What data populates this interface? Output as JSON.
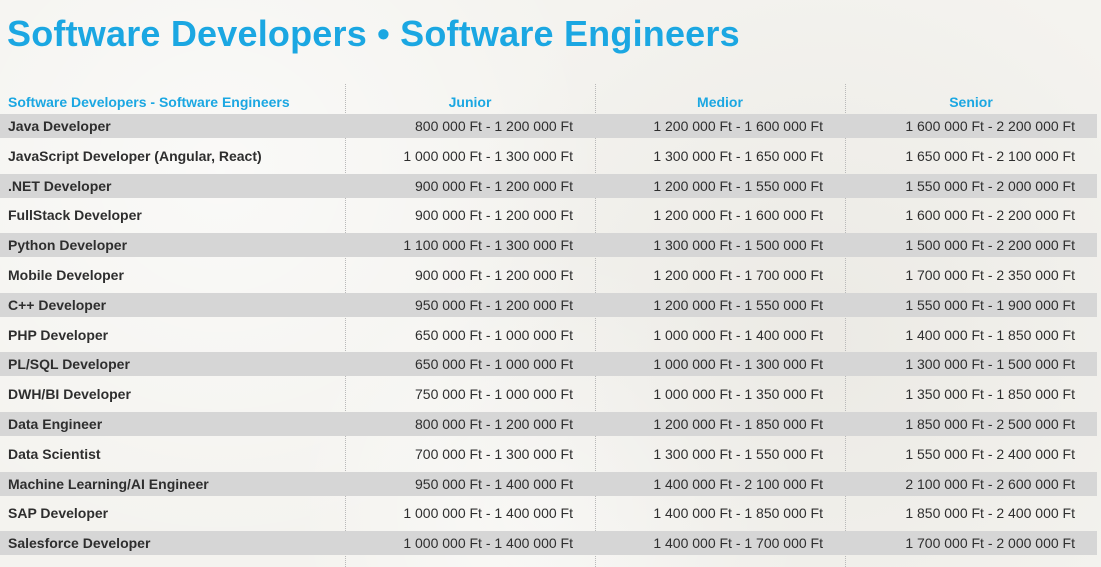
{
  "title": "Software Developers • Software Engineers",
  "table": {
    "headers": [
      "Software Developers - Software Engineers",
      "Junior",
      "Medior",
      "Senior"
    ],
    "rows": [
      {
        "role": "Java Developer",
        "junior": "800 000 Ft  -  1 200 000 Ft",
        "medior": "1 200 000 Ft  -  1 600 000 Ft",
        "senior": "1 600 000 Ft  -  2 200 000 Ft"
      },
      {
        "role": "JavaScript Developer (Angular, React)",
        "junior": "1 000 000 Ft  -  1 300 000 Ft",
        "medior": "1 300 000 Ft  -  1 650 000 Ft",
        "senior": "1 650 000 Ft  -  2 100 000 Ft"
      },
      {
        "role": ".NET Developer",
        "junior": "900 000 Ft  -  1 200 000 Ft",
        "medior": "1 200 000 Ft  -  1 550 000 Ft",
        "senior": "1 550 000 Ft  -  2 000 000 Ft"
      },
      {
        "role": "FullStack Developer",
        "junior": "900 000 Ft  -  1 200 000 Ft",
        "medior": "1 200 000 Ft  -  1 600 000 Ft",
        "senior": "1 600 000 Ft  -  2 200 000 Ft"
      },
      {
        "role": "Python Developer",
        "junior": "1 100 000 Ft  -  1 300 000 Ft",
        "medior": "1 300 000 Ft  -  1 500 000 Ft",
        "senior": "1 500 000 Ft  -  2 200 000 Ft"
      },
      {
        "role": "Mobile Developer",
        "junior": "900 000 Ft  -  1 200 000 Ft",
        "medior": "1 200 000 Ft  -  1 700 000 Ft",
        "senior": "1 700 000 Ft  -  2 350 000 Ft"
      },
      {
        "role": "C++ Developer",
        "junior": "950 000 Ft  -  1 200 000 Ft",
        "medior": "1 200 000 Ft  -  1 550 000 Ft",
        "senior": "1 550 000 Ft  -  1 900 000 Ft"
      },
      {
        "role": "PHP Developer",
        "junior": "650 000 Ft  -  1 000 000 Ft",
        "medior": "1 000 000 Ft  -  1 400 000 Ft",
        "senior": "1 400 000 Ft  -  1 850 000 Ft"
      },
      {
        "role": "PL/SQL Developer",
        "junior": "650 000 Ft  -  1 000 000 Ft",
        "medior": "1 000 000 Ft  -  1 300 000 Ft",
        "senior": "1 300 000 Ft  -  1 500 000 Ft"
      },
      {
        "role": "DWH/BI Developer",
        "junior": "750 000 Ft  -  1 000 000 Ft",
        "medior": "1 000 000 Ft  -  1 350 000 Ft",
        "senior": "1 350 000 Ft  -  1 850 000 Ft"
      },
      {
        "role": "Data Engineer",
        "junior": "800 000 Ft  -  1 200 000 Ft",
        "medior": "1 200 000 Ft  -  1 850 000 Ft",
        "senior": "1 850 000 Ft  -  2 500 000 Ft"
      },
      {
        "role": "Data Scientist",
        "junior": "700 000 Ft  -  1 300 000 Ft",
        "medior": "1 300 000 Ft  -  1 550 000 Ft",
        "senior": "1 550 000 Ft  -  2 400 000 Ft"
      },
      {
        "role": "Machine Learning/AI Engineer",
        "junior": "950 000 Ft  -  1 400 000 Ft",
        "medior": "1 400 000 Ft  -  2 100 000 Ft",
        "senior": "2 100 000 Ft  -  2 600 000 Ft"
      },
      {
        "role": "SAP Developer",
        "junior": "1 000 000 Ft  -  1 400 000 Ft",
        "medior": "1 400 000 Ft  -  1 850 000 Ft",
        "senior": "1 850 000 Ft  -  2 400 000 Ft"
      },
      {
        "role": "Salesforce Developer",
        "junior": "1 000 000 Ft  -  1 400 000 Ft",
        "medior": "1 400 000 Ft  -  1 700 000 Ft",
        "senior": "1 700 000 Ft  -  2 000 000 Ft"
      }
    ]
  },
  "colors": {
    "accent": "#1ba7e2",
    "row_shade": "#d6d6d6",
    "text": "#2e2e2e",
    "background": "#f4f3ef"
  }
}
